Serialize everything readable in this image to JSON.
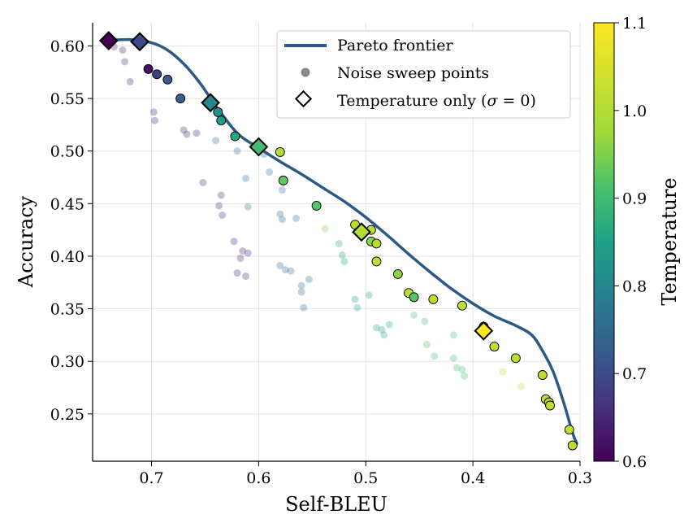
{
  "chart_data": {
    "type": "scatter",
    "xlabel": "Self-BLEU",
    "ylabel": "Accuracy",
    "x_inverted": true,
    "xlim": [
      0.755,
      0.3
    ],
    "ylim": [
      0.205,
      0.622
    ],
    "x_ticks": [
      0.7,
      0.6,
      0.5,
      0.4,
      0.3
    ],
    "x_tick_labels": [
      "0.7",
      "0.6",
      "0.5",
      "0.4",
      "0.3"
    ],
    "y_ticks": [
      0.25,
      0.3,
      0.35,
      0.4,
      0.45,
      0.5,
      0.55,
      0.6
    ],
    "y_tick_labels": [
      "0.25",
      "0.30",
      "0.35",
      "0.40",
      "0.45",
      "0.50",
      "0.55",
      "0.60"
    ],
    "grid": true,
    "legend_position": "top-right",
    "legend": {
      "frontier": "Pareto frontier",
      "noise": "Noise sweep points",
      "temp_main": "Temperature only (",
      "temp_sigma": "σ",
      "temp_eq": " = 0)"
    },
    "colorbar": {
      "label": "Temperature",
      "range": [
        0.6,
        1.1
      ],
      "ticks": [
        0.6,
        0.7,
        0.8,
        0.9,
        1.0,
        1.1
      ],
      "tick_labels": [
        "0.6",
        "0.7",
        "0.8",
        "0.9",
        "1.0",
        "1.1"
      ],
      "colormap": "viridis"
    },
    "colors": {
      "frontier": "#2c5985",
      "legend_marker": "#888888",
      "edge": "#000000"
    },
    "pareto_frontier": [
      [
        0.745,
        0.605
      ],
      [
        0.72,
        0.606
      ],
      [
        0.7,
        0.603
      ],
      [
        0.685,
        0.596
      ],
      [
        0.67,
        0.583
      ],
      [
        0.655,
        0.565
      ],
      [
        0.64,
        0.543
      ],
      [
        0.62,
        0.517
      ],
      [
        0.6,
        0.503
      ],
      [
        0.58,
        0.49
      ],
      [
        0.56,
        0.478
      ],
      [
        0.54,
        0.465
      ],
      [
        0.52,
        0.452
      ],
      [
        0.5,
        0.437
      ],
      [
        0.48,
        0.42
      ],
      [
        0.46,
        0.402
      ],
      [
        0.44,
        0.385
      ],
      [
        0.42,
        0.369
      ],
      [
        0.4,
        0.355
      ],
      [
        0.38,
        0.343
      ],
      [
        0.36,
        0.334
      ],
      [
        0.345,
        0.325
      ],
      [
        0.335,
        0.31
      ],
      [
        0.325,
        0.29
      ],
      [
        0.315,
        0.26
      ],
      [
        0.307,
        0.232
      ],
      [
        0.303,
        0.222
      ]
    ],
    "temperature_only": [
      {
        "x": 0.74,
        "y": 0.605,
        "t": 0.6
      },
      {
        "x": 0.711,
        "y": 0.604,
        "t": 0.7
      },
      {
        "x": 0.645,
        "y": 0.546,
        "t": 0.8
      },
      {
        "x": 0.6,
        "y": 0.504,
        "t": 0.9
      },
      {
        "x": 0.504,
        "y": 0.423,
        "t": 1.0
      },
      {
        "x": 0.39,
        "y": 0.329,
        "t": 1.1
      }
    ],
    "noise_sweep_visible": [
      {
        "x": 0.703,
        "y": 0.578,
        "t": 0.62
      },
      {
        "x": 0.695,
        "y": 0.573,
        "t": 0.68
      },
      {
        "x": 0.685,
        "y": 0.568,
        "t": 0.72
      },
      {
        "x": 0.673,
        "y": 0.55,
        "t": 0.73
      },
      {
        "x": 0.638,
        "y": 0.537,
        "t": 0.82
      },
      {
        "x": 0.635,
        "y": 0.529,
        "t": 0.84
      },
      {
        "x": 0.622,
        "y": 0.514,
        "t": 0.86
      },
      {
        "x": 0.58,
        "y": 0.499,
        "t": 1.0
      },
      {
        "x": 0.577,
        "y": 0.472,
        "t": 0.93
      },
      {
        "x": 0.546,
        "y": 0.448,
        "t": 0.92
      },
      {
        "x": 0.51,
        "y": 0.43,
        "t": 1.01
      },
      {
        "x": 0.495,
        "y": 0.425,
        "t": 1.01
      },
      {
        "x": 0.495,
        "y": 0.414,
        "t": 0.96
      },
      {
        "x": 0.49,
        "y": 0.412,
        "t": 1.01
      },
      {
        "x": 0.49,
        "y": 0.395,
        "t": 1.01
      },
      {
        "x": 0.47,
        "y": 0.383,
        "t": 0.96
      },
      {
        "x": 0.46,
        "y": 0.365,
        "t": 1.01
      },
      {
        "x": 0.455,
        "y": 0.361,
        "t": 0.92
      },
      {
        "x": 0.437,
        "y": 0.359,
        "t": 1.01
      },
      {
        "x": 0.41,
        "y": 0.353,
        "t": 1.01
      },
      {
        "x": 0.39,
        "y": 0.333,
        "t": 1.01
      },
      {
        "x": 0.38,
        "y": 0.314,
        "t": 1.01
      },
      {
        "x": 0.36,
        "y": 0.303,
        "t": 1.01
      },
      {
        "x": 0.335,
        "y": 0.287,
        "t": 1.01
      },
      {
        "x": 0.332,
        "y": 0.264,
        "t": 1.01
      },
      {
        "x": 0.329,
        "y": 0.261,
        "t": 1.01
      },
      {
        "x": 0.328,
        "y": 0.258,
        "t": 1.01
      },
      {
        "x": 0.31,
        "y": 0.235,
        "t": 1.01
      },
      {
        "x": 0.307,
        "y": 0.22,
        "t": 1.01
      }
    ],
    "noise_sweep_faded": [
      {
        "x": 0.735,
        "y": 0.599,
        "t": 0.65
      },
      {
        "x": 0.727,
        "y": 0.596,
        "t": 0.65
      },
      {
        "x": 0.725,
        "y": 0.585,
        "t": 0.65
      },
      {
        "x": 0.72,
        "y": 0.566,
        "t": 0.65
      },
      {
        "x": 0.698,
        "y": 0.537,
        "t": 0.65
      },
      {
        "x": 0.697,
        "y": 0.529,
        "t": 0.65
      },
      {
        "x": 0.67,
        "y": 0.52,
        "t": 0.65
      },
      {
        "x": 0.667,
        "y": 0.516,
        "t": 0.65
      },
      {
        "x": 0.658,
        "y": 0.517,
        "t": 0.65
      },
      {
        "x": 0.652,
        "y": 0.47,
        "t": 0.65
      },
      {
        "x": 0.635,
        "y": 0.458,
        "t": 0.65
      },
      {
        "x": 0.637,
        "y": 0.448,
        "t": 0.65
      },
      {
        "x": 0.634,
        "y": 0.439,
        "t": 0.65
      },
      {
        "x": 0.623,
        "y": 0.414,
        "t": 0.65
      },
      {
        "x": 0.615,
        "y": 0.405,
        "t": 0.65
      },
      {
        "x": 0.61,
        "y": 0.403,
        "t": 0.65
      },
      {
        "x": 0.617,
        "y": 0.398,
        "t": 0.65
      },
      {
        "x": 0.62,
        "y": 0.384,
        "t": 0.65
      },
      {
        "x": 0.612,
        "y": 0.381,
        "t": 0.65
      },
      {
        "x": 0.64,
        "y": 0.51,
        "t": 0.75
      },
      {
        "x": 0.62,
        "y": 0.5,
        "t": 0.75
      },
      {
        "x": 0.612,
        "y": 0.474,
        "t": 0.75
      },
      {
        "x": 0.61,
        "y": 0.447,
        "t": 0.75
      },
      {
        "x": 0.58,
        "y": 0.44,
        "t": 0.75
      },
      {
        "x": 0.578,
        "y": 0.435,
        "t": 0.75
      },
      {
        "x": 0.565,
        "y": 0.436,
        "t": 0.75
      },
      {
        "x": 0.58,
        "y": 0.391,
        "t": 0.75
      },
      {
        "x": 0.575,
        "y": 0.387,
        "t": 0.75
      },
      {
        "x": 0.57,
        "y": 0.386,
        "t": 0.75
      },
      {
        "x": 0.553,
        "y": 0.378,
        "t": 0.75
      },
      {
        "x": 0.56,
        "y": 0.372,
        "t": 0.75
      },
      {
        "x": 0.56,
        "y": 0.366,
        "t": 0.75
      },
      {
        "x": 0.558,
        "y": 0.351,
        "t": 0.75
      },
      {
        "x": 0.59,
        "y": 0.48,
        "t": 0.75
      },
      {
        "x": 0.578,
        "y": 0.463,
        "t": 0.75
      },
      {
        "x": 0.595,
        "y": 0.497,
        "t": 0.75
      },
      {
        "x": 0.525,
        "y": 0.412,
        "t": 0.85
      },
      {
        "x": 0.522,
        "y": 0.401,
        "t": 0.85
      },
      {
        "x": 0.52,
        "y": 0.395,
        "t": 0.85
      },
      {
        "x": 0.51,
        "y": 0.359,
        "t": 0.85
      },
      {
        "x": 0.508,
        "y": 0.351,
        "t": 0.85
      },
      {
        "x": 0.497,
        "y": 0.363,
        "t": 0.85
      },
      {
        "x": 0.49,
        "y": 0.332,
        "t": 0.85
      },
      {
        "x": 0.485,
        "y": 0.33,
        "t": 0.85
      },
      {
        "x": 0.483,
        "y": 0.325,
        "t": 0.85
      },
      {
        "x": 0.478,
        "y": 0.335,
        "t": 0.85
      },
      {
        "x": 0.455,
        "y": 0.344,
        "t": 0.9
      },
      {
        "x": 0.445,
        "y": 0.338,
        "t": 0.9
      },
      {
        "x": 0.443,
        "y": 0.316,
        "t": 0.9
      },
      {
        "x": 0.436,
        "y": 0.305,
        "t": 0.9
      },
      {
        "x": 0.418,
        "y": 0.325,
        "t": 0.9
      },
      {
        "x": 0.418,
        "y": 0.303,
        "t": 0.9
      },
      {
        "x": 0.415,
        "y": 0.294,
        "t": 0.9
      },
      {
        "x": 0.41,
        "y": 0.292,
        "t": 0.9
      },
      {
        "x": 0.408,
        "y": 0.286,
        "t": 0.9
      },
      {
        "x": 0.538,
        "y": 0.426,
        "t": 0.95
      },
      {
        "x": 0.372,
        "y": 0.29,
        "t": 1.0
      },
      {
        "x": 0.355,
        "y": 0.276,
        "t": 1.0
      }
    ]
  }
}
